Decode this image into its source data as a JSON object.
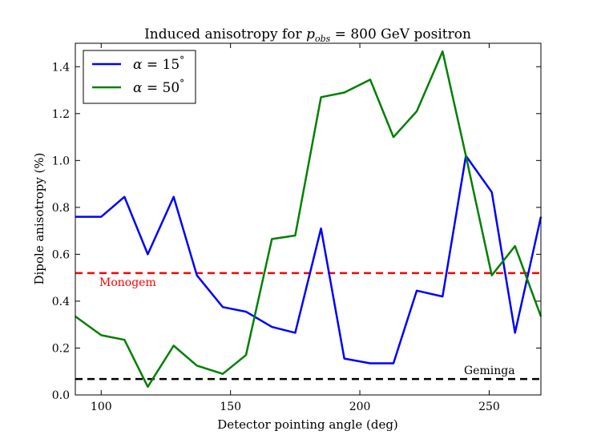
{
  "chart_data": {
    "type": "line",
    "title": "Induced anisotropy for p_obs = 800 GeV positron",
    "title_parts": {
      "prefix": "Induced anisotropy for ",
      "p": "p",
      "sub": "obs",
      "eq": " = 800 GeV positron"
    },
    "xlabel": "Detector pointing angle (deg)",
    "ylabel": "Dipole anisotropy (%)",
    "xlim": [
      90,
      270
    ],
    "ylim": [
      0,
      1.5
    ],
    "xticks": [
      100,
      150,
      200,
      250
    ],
    "yticks": [
      0.0,
      0.2,
      0.4,
      0.6,
      0.8,
      1.0,
      1.2,
      1.4
    ],
    "grid": false,
    "legend_position": "top-left",
    "series": [
      {
        "name": "α = 15°",
        "label_alpha": "α",
        "label_eq": " = 15",
        "label_deg": "°",
        "color": "#0000ff",
        "x": [
          90,
          100,
          109,
          118,
          128,
          137,
          147,
          156,
          166,
          175,
          185,
          194,
          204,
          213,
          222,
          232,
          241,
          251,
          260,
          270
        ],
        "y": [
          0.76,
          0.76,
          0.845,
          0.6,
          0.845,
          0.51,
          0.375,
          0.355,
          0.29,
          0.265,
          0.71,
          0.155,
          0.135,
          0.135,
          0.445,
          0.42,
          1.02,
          0.865,
          0.265,
          0.76
        ]
      },
      {
        "name": "α = 50°",
        "label_alpha": "α",
        "label_eq": " = 50",
        "label_deg": "°",
        "color": "#008000",
        "x": [
          90,
          100,
          109,
          118,
          128,
          137,
          147,
          156,
          166,
          175,
          185,
          194,
          204,
          213,
          222,
          232,
          241,
          251,
          260,
          270
        ],
        "y": [
          0.335,
          0.255,
          0.235,
          0.035,
          0.21,
          0.125,
          0.09,
          0.17,
          0.665,
          0.68,
          1.27,
          1.29,
          1.345,
          1.1,
          1.21,
          1.465,
          1.02,
          0.51,
          0.635,
          0.335
        ]
      }
    ],
    "reference_lines": [
      {
        "name": "Monogem",
        "y": 0.52,
        "color": "#ff0000"
      },
      {
        "name": "Geminga",
        "y": 0.068,
        "color": "#000000"
      }
    ]
  }
}
